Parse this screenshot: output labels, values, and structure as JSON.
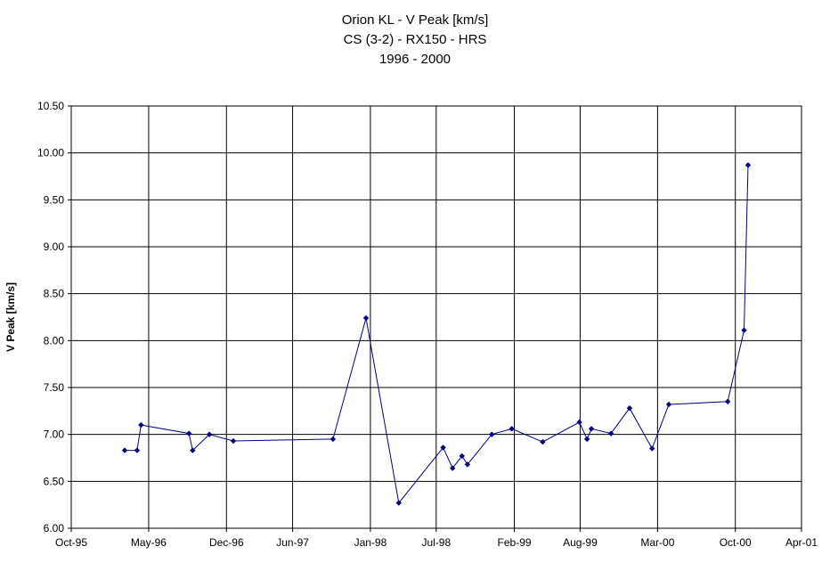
{
  "chart_data": {
    "type": "line",
    "title": [
      "Orion KL - V Peak [km/s]",
      "CS (3-2) - RX150 - HRS",
      "1996 - 2000"
    ],
    "xlabel": "",
    "ylabel": "V Peak [km/s]",
    "ylim": [
      6.0,
      10.5
    ],
    "y_ticks": [
      "6.00",
      "6.50",
      "7.00",
      "7.50",
      "8.00",
      "8.50",
      "9.00",
      "9.50",
      "10.00",
      "10.50"
    ],
    "x_tick_labels": [
      "Oct-95",
      "May-96",
      "Dec-96",
      "Jun-97",
      "Jan-98",
      "Jul-98",
      "Feb-99",
      "Aug-99",
      "Mar-00",
      "Oct-00",
      "Apr-01"
    ],
    "grid": true,
    "legend": "none",
    "series": [
      {
        "color": "#000080",
        "points": [
          {
            "x": "1996-02-25",
            "y": 6.83
          },
          {
            "x": "1996-03-30",
            "y": 6.83
          },
          {
            "x": "1996-04-10",
            "y": 7.1
          },
          {
            "x": "1996-08-20",
            "y": 7.01
          },
          {
            "x": "1996-08-30",
            "y": 6.83
          },
          {
            "x": "1996-10-15",
            "y": 7.0
          },
          {
            "x": "1996-12-20",
            "y": 6.93
          },
          {
            "x": "1997-09-20",
            "y": 6.95
          },
          {
            "x": "1997-12-20",
            "y": 8.24
          },
          {
            "x": "1998-03-20",
            "y": 6.27
          },
          {
            "x": "1998-07-20",
            "y": 6.86
          },
          {
            "x": "1998-08-15",
            "y": 6.64
          },
          {
            "x": "1998-09-10",
            "y": 6.77
          },
          {
            "x": "1998-09-25",
            "y": 6.68
          },
          {
            "x": "1998-12-01",
            "y": 7.0
          },
          {
            "x": "1999-01-25",
            "y": 7.06
          },
          {
            "x": "1999-04-20",
            "y": 6.92
          },
          {
            "x": "1999-07-30",
            "y": 7.13
          },
          {
            "x": "1999-08-20",
            "y": 6.95
          },
          {
            "x": "1999-09-01",
            "y": 7.06
          },
          {
            "x": "1999-10-25",
            "y": 7.01
          },
          {
            "x": "1999-12-15",
            "y": 7.28
          },
          {
            "x": "2000-02-15",
            "y": 6.85
          },
          {
            "x": "2000-04-01",
            "y": 7.32
          },
          {
            "x": "2000-09-10",
            "y": 7.35
          },
          {
            "x": "2000-10-25",
            "y": 8.11
          },
          {
            "x": "2000-11-05",
            "y": 9.87
          }
        ]
      }
    ]
  }
}
